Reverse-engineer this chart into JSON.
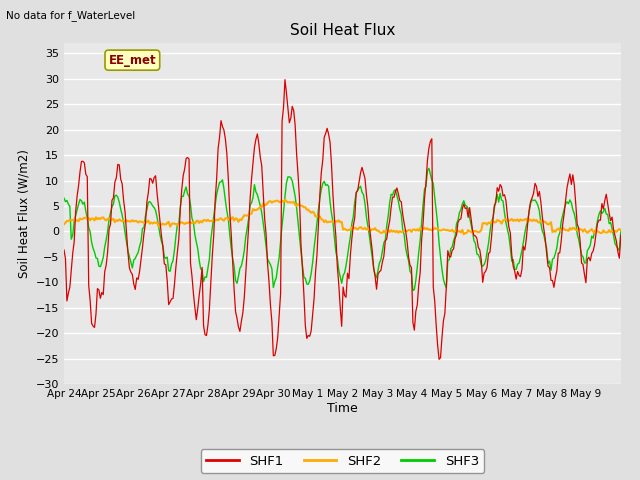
{
  "title": "Soil Heat Flux",
  "subtitle": "No data for f_WaterLevel",
  "ylabel": "Soil Heat Flux (W/m2)",
  "xlabel": "Time",
  "ylim": [
    -30,
    37
  ],
  "yticks": [
    -30,
    -25,
    -20,
    -15,
    -10,
    -5,
    0,
    5,
    10,
    15,
    20,
    25,
    30,
    35
  ],
  "plot_bg_color": "#e8e8e8",
  "fig_bg_color": "#e0e0e0",
  "grid_color": "#ffffff",
  "shf1_color": "#dd0000",
  "shf2_color": "#ffaa00",
  "shf3_color": "#00cc00",
  "legend_label1": "SHF1",
  "legend_label2": "SHF2",
  "legend_label3": "SHF3",
  "station_label": "EE_met",
  "x_tick_labels": [
    "Apr 24",
    "Apr 25",
    "Apr 26",
    "Apr 27",
    "Apr 28",
    "Apr 29",
    "Apr 30",
    "May 1",
    "May 2",
    "May 3",
    "May 4",
    "May 5",
    "May 6",
    "May 7",
    "May 8",
    "May 9"
  ],
  "n_days": 16
}
